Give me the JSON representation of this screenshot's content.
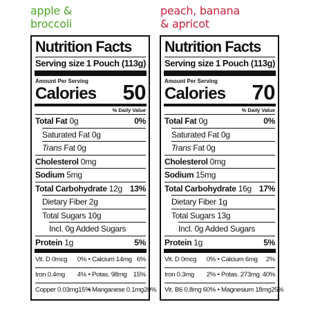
{
  "panels": [
    {
      "flavor_line1": "apple &",
      "flavor_line2": "broccoli",
      "flavor_color": "#4ea72a",
      "title": "Nutrition Facts",
      "serving_label": "Serving size",
      "serving_value": "1 Pouch (113g)",
      "amount_per_serving": "Amount Per Serving",
      "calories_label": "Calories",
      "calories_value": "50",
      "daily_value_header": "% Daily Value",
      "rows": {
        "total_fat": {
          "label": "Total Fat",
          "amount": "0g",
          "pct": "0%"
        },
        "saturated_fat": {
          "label": "Saturated Fat 0g"
        },
        "trans_fat": {
          "label_italic": "Trans",
          "label": " Fat 0g"
        },
        "cholesterol": {
          "label": "Cholesterol",
          "amount": "0mg"
        },
        "sodium": {
          "label": "Sodium",
          "amount": "5mg"
        },
        "total_carb": {
          "label": "Total Carbohydrate",
          "amount": "12g",
          "pct": "13%"
        },
        "fiber": {
          "label": "Dietary Fiber 2g"
        },
        "sugars": {
          "label": "Total Sugars 10g"
        },
        "added_sugars": {
          "label": "Incl. 0g Added Sugars"
        },
        "protein": {
          "label": "Protein",
          "amount": "1g",
          "pct": "5%"
        }
      },
      "micros": [
        {
          "a_name": "Vit. D 0mcg",
          "a_pct": "0%",
          "b_name": "Calcium 14mg",
          "b_pct": "6%"
        },
        {
          "a_name": "Iron 0.4mg",
          "a_pct": "4%",
          "b_name": "Potas. 98mg",
          "b_pct": "15%"
        },
        {
          "a_name": "Copper 0.03mg",
          "a_pct": "15%",
          "b_name": "Manganese 0.1mg",
          "b_pct": "20%"
        }
      ]
    },
    {
      "flavor_line1": "peach, banana",
      "flavor_line2": "& apricot",
      "flavor_color": "#c8203a",
      "title": "Nutrition Facts",
      "serving_label": "Serving size",
      "serving_value": "1 Pouch (113g)",
      "amount_per_serving": "Amount Per Serving",
      "calories_label": "Calories",
      "calories_value": "70",
      "daily_value_header": "% Daily Value",
      "rows": {
        "total_fat": {
          "label": "Total Fat",
          "amount": "0g",
          "pct": "0%"
        },
        "saturated_fat": {
          "label": "Saturated Fat 0g"
        },
        "trans_fat": {
          "label_italic": "Trans",
          "label": " Fat 0g"
        },
        "cholesterol": {
          "label": "Cholesterol",
          "amount": "0mg"
        },
        "sodium": {
          "label": "Sodium",
          "amount": "15mg"
        },
        "total_carb": {
          "label": "Total Carbohydrate",
          "amount": "16g",
          "pct": "17%"
        },
        "fiber": {
          "label": "Dietary Fiber 1g"
        },
        "sugars": {
          "label": "Total Sugars 13g"
        },
        "added_sugars": {
          "label": "Incl. 0g Added Sugars"
        },
        "protein": {
          "label": "Protein",
          "amount": "1g",
          "pct": "5%"
        }
      },
      "micros": [
        {
          "a_name": "Vit. D 0mcg",
          "a_pct": "0%",
          "b_name": "Calcium 6mg",
          "b_pct": "2%"
        },
        {
          "a_name": "Iron 0.3mg",
          "a_pct": "2%",
          "b_name": "Potas. 273mg",
          "b_pct": "40%"
        },
        {
          "a_name": "Vit. B6 0.8mg",
          "a_pct": "60%",
          "b_name": "Magnesium 18mg",
          "b_pct": "25%"
        }
      ]
    }
  ]
}
